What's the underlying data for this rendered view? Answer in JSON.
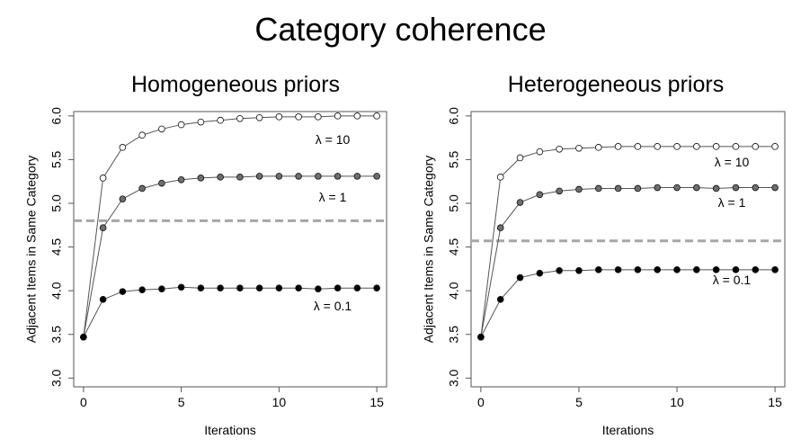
{
  "title": "Category coherence",
  "chart_data": [
    {
      "type": "line",
      "title": "Homogeneous priors",
      "xlabel": "Iterations",
      "ylabel": "Adjacent Items in Same Category",
      "xlim": [
        -0.5,
        15.5
      ],
      "ylim": [
        2.9,
        6.05
      ],
      "xticks": [
        0,
        5,
        10,
        15
      ],
      "yticks": [
        3.0,
        3.5,
        4.0,
        4.5,
        5.0,
        5.5,
        6.0
      ],
      "ytick_labels": [
        "3.0",
        "3.5",
        "4.0",
        "4.5",
        "5.0",
        "5.5",
        "6.0"
      ],
      "x": [
        0,
        1,
        2,
        3,
        4,
        5,
        6,
        7,
        8,
        9,
        10,
        11,
        12,
        13,
        14,
        15
      ],
      "baseline": 4.8,
      "series": [
        {
          "name": "λ = 10",
          "fill": "#ffffff",
          "values": [
            3.47,
            5.29,
            5.64,
            5.78,
            5.85,
            5.9,
            5.93,
            5.95,
            5.97,
            5.98,
            5.99,
            5.99,
            5.99,
            6.0,
            6.0,
            6.0
          ]
        },
        {
          "name": "λ = 1",
          "fill": "#6e6e6e",
          "values": [
            3.47,
            4.72,
            5.05,
            5.17,
            5.23,
            5.27,
            5.29,
            5.3,
            5.3,
            5.31,
            5.31,
            5.31,
            5.31,
            5.31,
            5.31,
            5.31
          ]
        },
        {
          "name": "λ = 0.1",
          "fill": "#000000",
          "values": [
            3.47,
            3.9,
            3.99,
            4.01,
            4.02,
            4.04,
            4.03,
            4.03,
            4.03,
            4.03,
            4.03,
            4.03,
            4.02,
            4.03,
            4.03,
            4.03
          ]
        }
      ]
    },
    {
      "type": "line",
      "title": "Heterogeneous priors",
      "xlabel": "Iterations",
      "ylabel": "Adjacent Items in Same Category",
      "xlim": [
        -0.5,
        15.5
      ],
      "ylim": [
        2.9,
        6.05
      ],
      "xticks": [
        0,
        5,
        10,
        15
      ],
      "yticks": [
        3.0,
        3.5,
        4.0,
        4.5,
        5.0,
        5.5,
        6.0
      ],
      "ytick_labels": [
        "3.0",
        "3.5",
        "4.0",
        "4.5",
        "5.0",
        "5.5",
        "6.0"
      ],
      "x": [
        0,
        1,
        2,
        3,
        4,
        5,
        6,
        7,
        8,
        9,
        10,
        11,
        12,
        13,
        14,
        15
      ],
      "baseline": 4.57,
      "series": [
        {
          "name": "λ = 10",
          "fill": "#ffffff",
          "values": [
            3.47,
            5.3,
            5.52,
            5.59,
            5.62,
            5.63,
            5.64,
            5.65,
            5.65,
            5.65,
            5.65,
            5.65,
            5.65,
            5.65,
            5.65,
            5.65
          ]
        },
        {
          "name": "λ = 1",
          "fill": "#6e6e6e",
          "values": [
            3.47,
            4.72,
            5.01,
            5.1,
            5.14,
            5.16,
            5.17,
            5.17,
            5.17,
            5.18,
            5.18,
            5.18,
            5.17,
            5.18,
            5.18,
            5.18
          ]
        },
        {
          "name": "λ = 0.1",
          "fill": "#000000",
          "values": [
            3.47,
            3.9,
            4.15,
            4.2,
            4.23,
            4.23,
            4.24,
            4.24,
            4.24,
            4.24,
            4.24,
            4.24,
            4.24,
            4.24,
            4.24,
            4.24
          ]
        }
      ]
    }
  ]
}
